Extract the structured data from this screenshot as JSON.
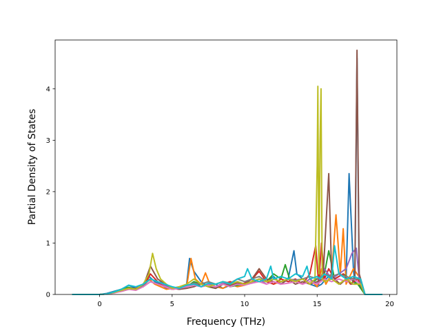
{
  "chart_data": {
    "type": "line",
    "title": "",
    "xlabel": "Frequency (THz)",
    "ylabel": "Partial Density of States",
    "xlim": [
      -3.07,
      20.5
    ],
    "ylim": [
      0,
      4.95
    ],
    "xticks": [
      {
        "value": 0,
        "label": "0"
      },
      {
        "value": 5,
        "label": "5"
      },
      {
        "value": 10,
        "label": "10"
      },
      {
        "value": 15,
        "label": "15"
      },
      {
        "value": 20,
        "label": "20"
      }
    ],
    "yticks": [
      {
        "value": 0,
        "label": "0"
      },
      {
        "value": 1,
        "label": "1"
      },
      {
        "value": 2,
        "label": "2"
      },
      {
        "value": 3,
        "label": "3"
      },
      {
        "value": 4,
        "label": "4"
      }
    ],
    "grid": false,
    "legend": "none",
    "colors": [
      "#1f77b4",
      "#ff7f0e",
      "#2ca02c",
      "#d62728",
      "#9467bd",
      "#8c564b",
      "#e377c2",
      "#7f7f7f",
      "#bcbd22",
      "#17becf"
    ],
    "series": [
      {
        "x": [
          -1.9,
          0,
          0.5,
          1,
          1.5,
          2,
          2.5,
          3,
          3.4,
          3.6,
          3.8,
          4.2,
          4.6,
          5,
          5.5,
          6,
          6.2,
          6.5,
          7,
          7.5,
          8,
          8.5,
          9,
          9.5,
          10,
          10.5,
          11,
          11.5,
          12,
          12.5,
          13,
          13.4,
          13.6,
          14,
          14.5,
          15,
          15.3,
          15.6,
          16,
          16.5,
          17,
          17.2,
          17.5,
          17.6,
          17.75,
          17.9,
          18.3,
          19.5
        ],
        "y": [
          0,
          0,
          0.02,
          0.06,
          0.1,
          0.18,
          0.12,
          0.2,
          0.35,
          0.3,
          0.25,
          0.2,
          0.12,
          0.15,
          0.1,
          0.2,
          0.7,
          0.45,
          0.25,
          0.15,
          0.2,
          0.12,
          0.18,
          0.25,
          0.2,
          0.22,
          0.3,
          0.25,
          0.35,
          0.2,
          0.3,
          0.85,
          0.4,
          0.3,
          0.2,
          0.15,
          0.2,
          0.3,
          0.4,
          0.2,
          0.3,
          2.35,
          0.5,
          0.2,
          4.6,
          0.2,
          0,
          0
        ]
      },
      {
        "x": [
          -1.9,
          0,
          0.5,
          1,
          1.5,
          2,
          2.5,
          3,
          3.4,
          3.8,
          4.2,
          4.6,
          5,
          5.5,
          6,
          6.3,
          6.6,
          7,
          7.3,
          7.6,
          8,
          8.5,
          9,
          9.5,
          10,
          10.5,
          11,
          11.5,
          12,
          12.5,
          13,
          13.5,
          14,
          14.5,
          15,
          15.3,
          15.6,
          16,
          16.3,
          16.6,
          16.8,
          17,
          17.5,
          18,
          18.3,
          19.5
        ],
        "y": [
          0,
          0,
          0.01,
          0.04,
          0.08,
          0.1,
          0.12,
          0.15,
          0.3,
          0.2,
          0.15,
          0.1,
          0.12,
          0.1,
          0.15,
          0.7,
          0.3,
          0.2,
          0.42,
          0.2,
          0.15,
          0.12,
          0.2,
          0.15,
          0.18,
          0.25,
          0.5,
          0.3,
          0.2,
          0.25,
          0.3,
          0.25,
          0.2,
          0.3,
          0.15,
          0.5,
          0.2,
          0.4,
          1.55,
          0.4,
          1.28,
          0.2,
          0.5,
          0.3,
          0,
          0
        ]
      },
      {
        "x": [
          -1.9,
          0,
          0.5,
          1,
          1.5,
          2,
          2.5,
          3,
          3.5,
          4,
          4.5,
          5,
          5.5,
          6,
          6.5,
          7,
          7.5,
          8,
          8.5,
          9,
          9.5,
          10,
          10.5,
          11,
          11.5,
          12,
          12.5,
          12.8,
          13.1,
          13.5,
          14,
          14.5,
          15,
          15.5,
          15.8,
          16.2,
          16.8,
          17.3,
          17.8,
          18.3,
          19.5
        ],
        "y": [
          0,
          0,
          0.01,
          0.05,
          0.1,
          0.14,
          0.1,
          0.15,
          0.25,
          0.2,
          0.15,
          0.1,
          0.12,
          0.15,
          0.25,
          0.2,
          0.15,
          0.12,
          0.2,
          0.15,
          0.18,
          0.2,
          0.25,
          0.3,
          0.25,
          0.4,
          0.3,
          0.58,
          0.3,
          0.25,
          0.3,
          0.2,
          0.3,
          0.4,
          0.85,
          0.3,
          0.4,
          0.3,
          0.2,
          0,
          0
        ]
      },
      {
        "x": [
          -1.9,
          0,
          0.5,
          1,
          1.5,
          2,
          2.5,
          3,
          3.5,
          4,
          4.5,
          5,
          5.5,
          6,
          6.5,
          7,
          7.5,
          8,
          8.5,
          9,
          9.5,
          10,
          10.5,
          11,
          11.5,
          12,
          12.5,
          13,
          13.5,
          14,
          14.5,
          14.9,
          15.1,
          15.3,
          15.5,
          15.8,
          16.2,
          16.8,
          17.3,
          17.8,
          18.3,
          19.5
        ],
        "y": [
          0,
          0,
          0.01,
          0.03,
          0.07,
          0.1,
          0.12,
          0.15,
          0.4,
          0.25,
          0.15,
          0.1,
          0.12,
          0.15,
          0.2,
          0.15,
          0.18,
          0.15,
          0.2,
          0.25,
          0.2,
          0.22,
          0.3,
          0.45,
          0.25,
          0.2,
          0.3,
          0.25,
          0.3,
          0.2,
          0.4,
          0.95,
          0.2,
          1.0,
          0.3,
          0.5,
          0.3,
          0.4,
          0.2,
          0.3,
          0,
          0
        ]
      },
      {
        "x": [
          -1.9,
          0,
          0.5,
          1,
          1.5,
          2,
          2.5,
          3,
          3.5,
          4,
          4.5,
          5,
          5.5,
          6,
          6.5,
          7,
          7.5,
          8,
          8.5,
          9,
          9.5,
          10,
          10.5,
          11,
          11.5,
          12,
          12.5,
          13,
          13.5,
          14,
          14.5,
          15,
          15.5,
          16,
          16.5,
          17,
          17.4,
          17.7,
          17.9,
          18.3,
          19.5
        ],
        "y": [
          0,
          0,
          0.01,
          0.04,
          0.08,
          0.12,
          0.1,
          0.2,
          0.3,
          0.25,
          0.18,
          0.12,
          0.1,
          0.15,
          0.22,
          0.15,
          0.2,
          0.15,
          0.22,
          0.2,
          0.25,
          0.2,
          0.25,
          0.3,
          0.2,
          0.25,
          0.2,
          0.3,
          0.25,
          0.2,
          0.3,
          0.2,
          0.5,
          0.3,
          0.4,
          0.5,
          0.8,
          0.9,
          0.3,
          0,
          0
        ]
      },
      {
        "x": [
          -1.9,
          0,
          0.5,
          1,
          1.5,
          2,
          2.5,
          3,
          3.5,
          4,
          4.5,
          5,
          5.5,
          6,
          6.5,
          7,
          7.5,
          8,
          8.5,
          9,
          9.5,
          10,
          10.5,
          11,
          11.5,
          12,
          12.5,
          13,
          13.5,
          14,
          14.5,
          15,
          15.4,
          15.8,
          16,
          16.2,
          16.6,
          17,
          17.4,
          17.6,
          17.75,
          17.9,
          18.3,
          19.5
        ],
        "y": [
          0,
          0,
          0.01,
          0.04,
          0.06,
          0.1,
          0.12,
          0.15,
          0.55,
          0.3,
          0.2,
          0.12,
          0.1,
          0.12,
          0.15,
          0.2,
          0.15,
          0.12,
          0.2,
          0.18,
          0.22,
          0.2,
          0.3,
          0.5,
          0.3,
          0.25,
          0.2,
          0.3,
          0.2,
          0.25,
          0.2,
          0.25,
          0.3,
          2.35,
          0.4,
          0.3,
          0.2,
          0.3,
          0.2,
          0.4,
          4.75,
          0.4,
          0,
          0
        ]
      },
      {
        "x": [
          -1.9,
          0,
          0.5,
          1,
          1.5,
          2,
          2.5,
          3,
          3.5,
          4,
          4.5,
          5,
          5.5,
          6,
          6.5,
          7,
          7.5,
          8,
          8.5,
          9,
          9.5,
          10,
          10.5,
          11,
          11.5,
          12,
          12.5,
          13,
          13.5,
          14,
          14.5,
          15,
          15.5,
          16,
          16.5,
          17,
          17.5,
          18,
          18.3,
          19.5
        ],
        "y": [
          0,
          0,
          0.01,
          0.03,
          0.06,
          0.1,
          0.08,
          0.15,
          0.25,
          0.2,
          0.15,
          0.1,
          0.12,
          0.15,
          0.18,
          0.15,
          0.18,
          0.15,
          0.2,
          0.15,
          0.2,
          0.18,
          0.22,
          0.25,
          0.2,
          0.25,
          0.2,
          0.22,
          0.25,
          0.2,
          0.25,
          0.2,
          0.3,
          0.25,
          0.3,
          0.25,
          0.3,
          0.2,
          0,
          0
        ]
      },
      {
        "x": [
          -1.9,
          0,
          0.5,
          1,
          1.5,
          2,
          2.5,
          3,
          3.5,
          4,
          4.5,
          5,
          5.5,
          6,
          6.5,
          7,
          7.5,
          8,
          8.5,
          9,
          9.5,
          10,
          10.5,
          11,
          11.5,
          12,
          12.5,
          13,
          13.5,
          14,
          14.5,
          15,
          15.5,
          16,
          16.5,
          17,
          17.5,
          17.9,
          18.3,
          19.5
        ],
        "y": [
          0,
          0,
          0.01,
          0.05,
          0.08,
          0.12,
          0.1,
          0.18,
          0.3,
          0.25,
          0.2,
          0.12,
          0.15,
          0.18,
          0.22,
          0.2,
          0.25,
          0.2,
          0.25,
          0.22,
          0.3,
          0.25,
          0.3,
          0.35,
          0.25,
          0.3,
          0.25,
          0.3,
          0.28,
          0.3,
          0.35,
          0.3,
          0.4,
          0.35,
          0.4,
          0.35,
          0.3,
          0.3,
          0,
          0
        ]
      },
      {
        "x": [
          -1.9,
          0,
          0.5,
          1,
          1.5,
          2,
          2.5,
          3,
          3.4,
          3.65,
          3.9,
          4.2,
          4.6,
          5,
          5.5,
          6,
          6.5,
          7,
          7.5,
          8,
          8.5,
          9,
          9.5,
          10,
          10.5,
          11,
          11.5,
          12,
          12.5,
          13,
          13.5,
          14,
          14.5,
          14.85,
          15.0,
          15.05,
          15.12,
          15.2,
          15.27,
          15.35,
          15.5,
          16,
          16.5,
          17,
          17.5,
          18,
          18.3,
          19.5
        ],
        "y": [
          0,
          0,
          0.01,
          0.04,
          0.08,
          0.12,
          0.1,
          0.2,
          0.4,
          0.8,
          0.5,
          0.3,
          0.2,
          0.12,
          0.15,
          0.2,
          0.3,
          0.2,
          0.15,
          0.2,
          0.25,
          0.2,
          0.25,
          0.2,
          0.25,
          0.3,
          0.25,
          0.3,
          0.25,
          0.3,
          0.25,
          0.3,
          0.2,
          0.3,
          2.5,
          4.05,
          0.4,
          3.0,
          4.0,
          0.3,
          0.25,
          0.3,
          0.2,
          0.3,
          0.2,
          0.2,
          0,
          0
        ]
      },
      {
        "x": [
          -1.9,
          0,
          0.5,
          1,
          1.5,
          2,
          2.5,
          3,
          3.5,
          4,
          4.5,
          5,
          5.5,
          6,
          6.5,
          7,
          7.5,
          8,
          8.5,
          9,
          9.5,
          10,
          10.2,
          10.5,
          11,
          11.5,
          11.8,
          12,
          12.5,
          13,
          13.5,
          14,
          14.3,
          14.5,
          15,
          15.2,
          15.5,
          16,
          16.2,
          16.5,
          17,
          17.5,
          18,
          18.3,
          19.5
        ],
        "y": [
          0,
          0,
          0.01,
          0.05,
          0.1,
          0.18,
          0.15,
          0.2,
          0.3,
          0.25,
          0.2,
          0.15,
          0.12,
          0.18,
          0.2,
          0.15,
          0.22,
          0.2,
          0.25,
          0.2,
          0.3,
          0.35,
          0.5,
          0.3,
          0.25,
          0.3,
          0.55,
          0.3,
          0.35,
          0.3,
          0.4,
          0.35,
          0.55,
          0.3,
          0.35,
          0.3,
          0.4,
          0.3,
          0.95,
          0.4,
          0.3,
          0.35,
          0.3,
          0,
          0
        ]
      }
    ]
  }
}
